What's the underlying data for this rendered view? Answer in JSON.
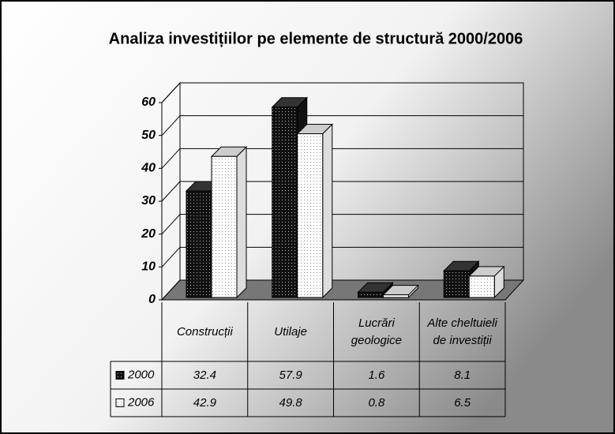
{
  "chart_data": {
    "type": "bar3d",
    "title": "Analiza investițiilor pe elemente de structură 2000/2006",
    "categories": [
      "Construcții",
      "Utilaje",
      "Lucrări geologice",
      "Alte cheltuieli de investiții"
    ],
    "series": [
      {
        "name": "2000",
        "color": "#111111",
        "values": [
          32.4,
          57.9,
          1.6,
          8.1
        ]
      },
      {
        "name": "2006",
        "color": "#ffffff",
        "values": [
          42.9,
          49.8,
          0.8,
          6.5
        ]
      }
    ],
    "ylim": [
      0,
      60
    ],
    "yticks": [
      0,
      10,
      20,
      30,
      40,
      50,
      60
    ],
    "grid": true,
    "data_table": true
  }
}
